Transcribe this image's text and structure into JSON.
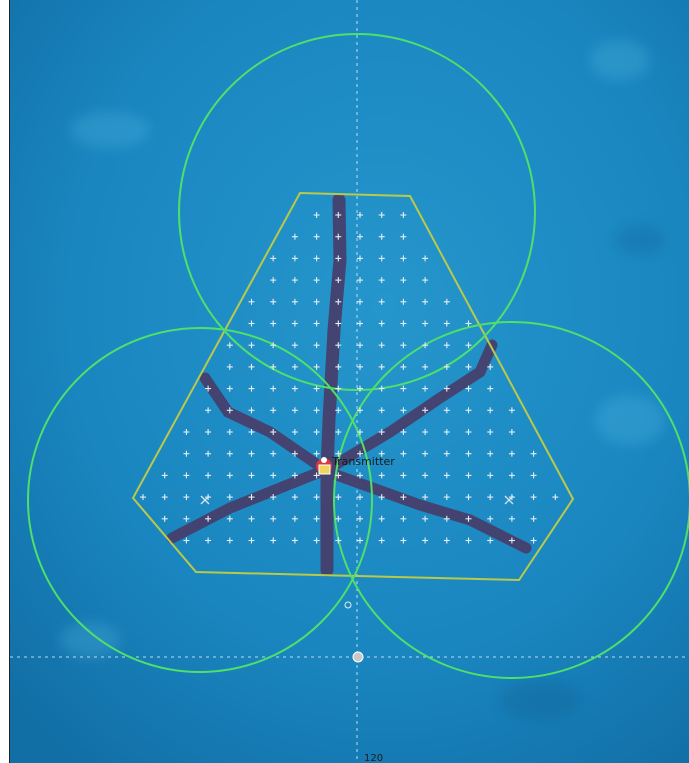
{
  "map": {
    "transmitter_label": "Transmitter",
    "scale_label": "120",
    "colors": {
      "water": "#1f8fc7",
      "water_dark": "#1273aa",
      "coverage_circle": "#4ee06a",
      "survey_boundary": "#b9c94a",
      "pipeline": "#46406e",
      "grid_marker": "#e6eef2",
      "transmitter": "#e23b3b"
    },
    "icons": {
      "transmitter": "transmitter-icon",
      "grid_marker": "plus-marker-icon",
      "cross_marker": "x-marker-icon"
    }
  }
}
